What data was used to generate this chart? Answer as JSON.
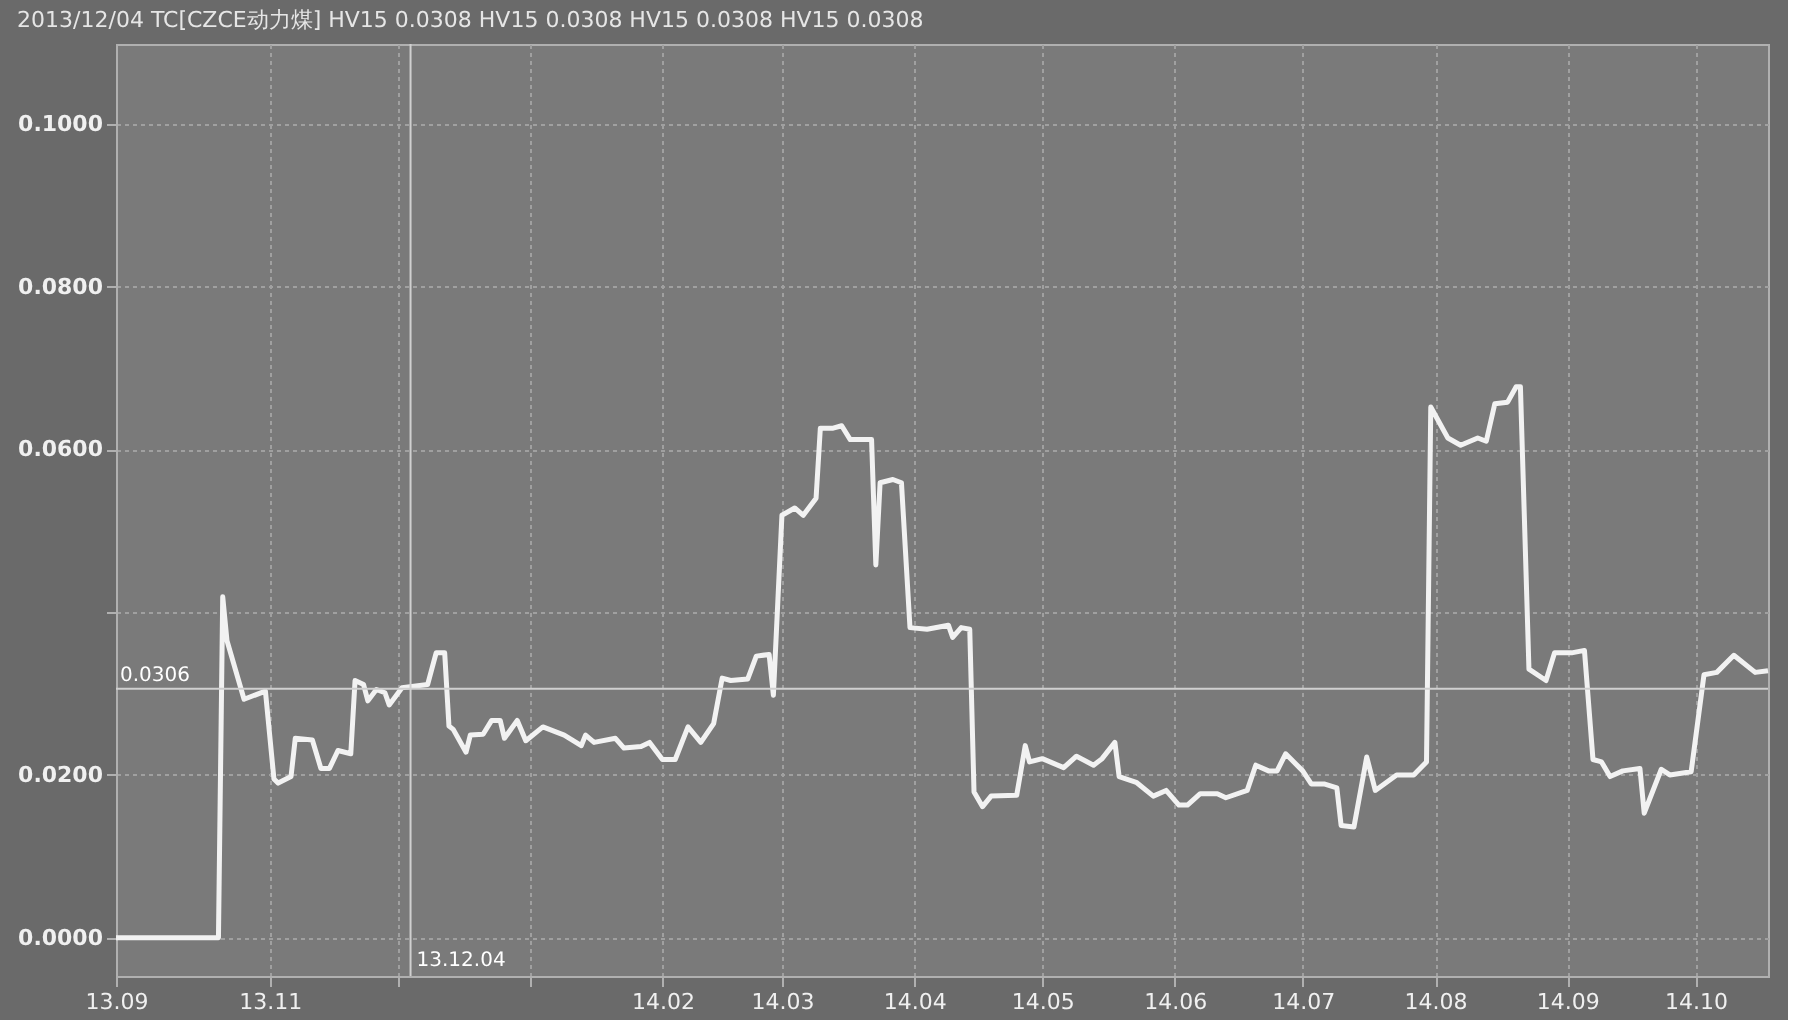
{
  "chart_data": {
    "type": "line",
    "title": "2013/12/04  TC[CZCE动力煤] HV15 0.0308  HV15 0.0308  HV15 0.0308  HV15 0.0308",
    "x": [
      "2013-09-26",
      "2013-10-20",
      "2013-10-21",
      "2013-10-22",
      "2013-10-26",
      "2013-10-31",
      "2013-11-02",
      "2013-11-03",
      "2013-11-06",
      "2013-11-07",
      "2013-11-11",
      "2013-11-13",
      "2013-11-15",
      "2013-11-17",
      "2013-11-20",
      "2013-11-21",
      "2013-11-23",
      "2013-11-24",
      "2013-11-26",
      "2013-11-28",
      "2013-11-29",
      "2013-12-02",
      "2013-12-08",
      "2013-12-10",
      "2013-12-12",
      "2013-12-13",
      "2013-12-14",
      "2013-12-17",
      "2013-12-18",
      "2013-12-21",
      "2013-12-23",
      "2013-12-25",
      "2013-12-26",
      "2013-12-29",
      "2013-12-31",
      "2014-01-04",
      "2014-01-09",
      "2014-01-13",
      "2014-01-14",
      "2014-01-16",
      "2014-01-21",
      "2014-01-23",
      "2014-01-27",
      "2014-01-29",
      "2014-02-01",
      "2014-02-04",
      "2014-02-07",
      "2014-02-10",
      "2014-02-13",
      "2014-02-15",
      "2014-02-17",
      "2014-02-21",
      "2014-02-23",
      "2014-02-26",
      "2014-02-27",
      "2014-03-01",
      "2014-03-04",
      "2014-03-06",
      "2014-03-09",
      "2014-03-10",
      "2014-03-13",
      "2014-03-15",
      "2014-03-17",
      "2014-03-22",
      "2014-03-23",
      "2014-03-24",
      "2014-03-27",
      "2014-03-29",
      "2014-03-31",
      "2014-04-04",
      "2014-04-09",
      "2014-04-10",
      "2014-04-12",
      "2014-04-14",
      "2014-04-15",
      "2014-04-17",
      "2014-04-19",
      "2014-04-25",
      "2014-04-27",
      "2014-04-28",
      "2014-05-01",
      "2014-05-06",
      "2014-05-09",
      "2014-05-13",
      "2014-05-15",
      "2014-05-18",
      "2014-05-19",
      "2014-05-23",
      "2014-05-27",
      "2014-05-30",
      "2014-06-02",
      "2014-06-04",
      "2014-06-07",
      "2014-06-11",
      "2014-06-13",
      "2014-06-18",
      "2014-06-20",
      "2014-06-23",
      "2014-06-25",
      "2014-06-27",
      "2014-07-01",
      "2014-07-03",
      "2014-07-06",
      "2014-07-09",
      "2014-07-10",
      "2014-07-13",
      "2014-07-16",
      "2014-07-18",
      "2014-07-23",
      "2014-07-27",
      "2014-07-30",
      "2014-07-31",
      "2014-08-04",
      "2014-08-07",
      "2014-08-11",
      "2014-08-13",
      "2014-08-15",
      "2014-08-18",
      "2014-08-20",
      "2014-08-21",
      "2014-08-23",
      "2014-08-27",
      "2014-08-29",
      "2014-09-02",
      "2014-09-05",
      "2014-09-07",
      "2014-09-09",
      "2014-09-11",
      "2014-09-14",
      "2014-09-18",
      "2014-09-19",
      "2014-09-23",
      "2014-09-25",
      "2014-09-30",
      "2014-10-03",
      "2014-10-06",
      "2014-10-10",
      "2014-10-15",
      "2014-10-18"
    ],
    "series": [
      {
        "color": "#f2f2f2",
        "values": [
          0,
          0,
          0.0419,
          0.0365,
          0.0293,
          0.0303,
          0.0195,
          0.019,
          0.0198,
          0.0245,
          0.0243,
          0.0208,
          0.0208,
          0.023,
          0.0226,
          0.0316,
          0.0311,
          0.0291,
          0.0305,
          0.0301,
          0.0286,
          0.0307,
          0.0311,
          0.035,
          0.035,
          0.026,
          0.0256,
          0.0228,
          0.0249,
          0.025,
          0.0267,
          0.0267,
          0.0245,
          0.0267,
          0.0242,
          0.0259,
          0.0249,
          0.0236,
          0.0249,
          0.024,
          0.0245,
          0.0233,
          0.0235,
          0.024,
          0.0219,
          0.0219,
          0.0259,
          0.024,
          0.0263,
          0.0319,
          0.0316,
          0.0318,
          0.0346,
          0.0348,
          0.0298,
          0.0519,
          0.0528,
          0.0519,
          0.054,
          0.0626,
          0.0626,
          0.0629,
          0.0612,
          0.0612,
          0.0458,
          0.0559,
          0.0563,
          0.0559,
          0.0381,
          0.0379,
          0.0384,
          0.0369,
          0.0381,
          0.0379,
          0.0179,
          0.0161,
          0.0174,
          0.0175,
          0.0236,
          0.0216,
          0.022,
          0.0209,
          0.0223,
          0.0212,
          0.022,
          0.024,
          0.0198,
          0.0191,
          0.0174,
          0.0181,
          0.0163,
          0.0163,
          0.0177,
          0.0177,
          0.0172,
          0.0181,
          0.0212,
          0.0205,
          0.0205,
          0.0226,
          0.0205,
          0.0189,
          0.0189,
          0.0184,
          0.0138,
          0.0136,
          0.0222,
          0.0181,
          0.02,
          0.02,
          0.0216,
          0.0652,
          0.0614,
          0.0605,
          0.0614,
          0.061,
          0.0656,
          0.0658,
          0.0677,
          0.0677,
          0.033,
          0.0316,
          0.035,
          0.035,
          0.0353,
          0.0219,
          0.0216,
          0.0198,
          0.0205,
          0.0208,
          0.0153,
          0.0207,
          0.02,
          0.0204,
          0.0323,
          0.0326,
          0.0347,
          0.0326,
          0.0328
        ]
      }
    ],
    "xlim": [
      "2013-09-26",
      "2014-10-18"
    ],
    "xticks": [
      {
        "value": "2013-09-26",
        "label": "13.09"
      },
      {
        "value": "2013-11-01",
        "label": "13.11"
      },
      {
        "value": "2013-12-01",
        "label": null
      },
      {
        "value": "2014-01-01",
        "label": null
      },
      {
        "value": "2014-02-01",
        "label": "14.02"
      },
      {
        "value": "2014-03-01",
        "label": "14.03"
      },
      {
        "value": "2014-04-01",
        "label": "14.04"
      },
      {
        "value": "2014-05-01",
        "label": "14.05"
      },
      {
        "value": "2014-06-01",
        "label": "14.06"
      },
      {
        "value": "2014-07-01",
        "label": "14.07"
      },
      {
        "value": "2014-08-01",
        "label": "14.08"
      },
      {
        "value": "2014-09-01",
        "label": "14.09"
      },
      {
        "value": "2014-10-01",
        "label": "14.10"
      }
    ],
    "ylim": [
      -0.0047,
      0.1098
    ],
    "yticks": [
      {
        "value": 0,
        "label": "0.0000"
      },
      {
        "value": 0.02,
        "label": "0.0200"
      },
      {
        "value": 0.04,
        "label": null
      },
      {
        "value": 0.06,
        "label": "0.0600"
      },
      {
        "value": 0.08,
        "label": "0.0800"
      },
      {
        "value": 0.1,
        "label": "0.1000"
      }
    ],
    "ref_lines": [
      {
        "axis": "y",
        "value": 0.0306,
        "label": "0.0306",
        "color": "#d0d0d0"
      },
      {
        "axis": "x",
        "value": "2013-12-04",
        "label": "13.12.04",
        "color": "#d0d0d0"
      }
    ],
    "grid": true,
    "marker": "none",
    "line_style": "solid"
  }
}
